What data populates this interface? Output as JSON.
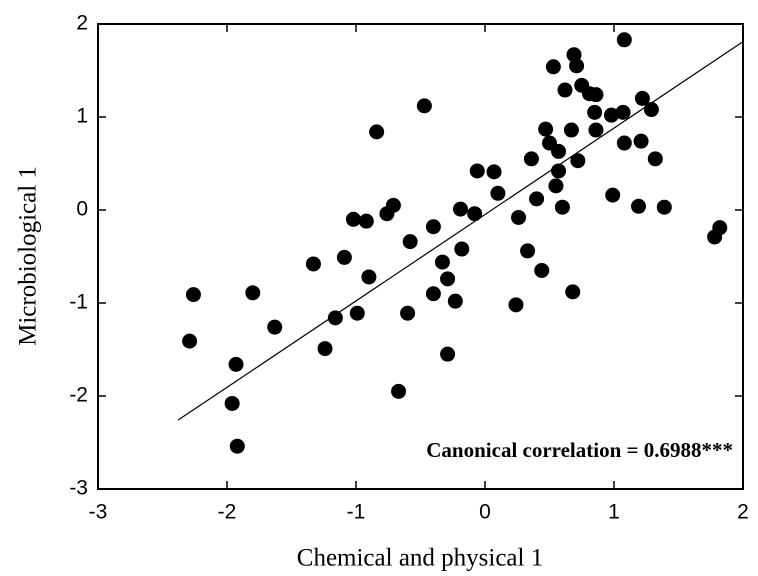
{
  "chart_data": {
    "type": "scatter",
    "xlabel": "Chemical and physical 1",
    "ylabel": "Microbiological 1",
    "annotation": "Canonical correlation = 0.6988***",
    "xlim": [
      -3,
      2
    ],
    "ylim": [
      -3,
      2
    ],
    "xticks": [
      -3,
      -2,
      -1,
      0,
      1,
      2
    ],
    "yticks": [
      -3,
      -2,
      -1,
      0,
      1,
      2
    ],
    "color": "#000000",
    "x": [
      -2.26,
      -2.29,
      -1.93,
      -1.96,
      -1.92,
      -1.8,
      -1.63,
      -1.33,
      -1.24,
      -1.16,
      -1.09,
      -1.02,
      -0.99,
      -0.92,
      -0.9,
      -0.84,
      -0.76,
      -0.71,
      -0.67,
      -0.6,
      -0.58,
      -0.47,
      -0.4,
      -0.4,
      -0.33,
      -0.29,
      -0.29,
      -0.23,
      -0.19,
      -0.18,
      -0.08,
      -0.06,
      0.07,
      0.1,
      0.24,
      0.26,
      0.33,
      0.36,
      0.4,
      0.44,
      0.47,
      0.5,
      0.53,
      0.55,
      0.57,
      0.57,
      0.6,
      0.62,
      0.67,
      0.68,
      0.69,
      0.71,
      0.72,
      0.75,
      0.81,
      0.86,
      0.85,
      0.86,
      0.98,
      0.99,
      1.07,
      1.08,
      1.08,
      1.19,
      1.21,
      1.22,
      1.29,
      1.32,
      1.39,
      1.78,
      1.82
    ],
    "y": [
      -0.91,
      -1.41,
      -1.66,
      -2.08,
      -2.54,
      -0.89,
      -1.26,
      -0.58,
      -1.49,
      -1.16,
      -0.51,
      -0.1,
      -1.11,
      -0.12,
      -0.72,
      0.84,
      -0.04,
      0.05,
      -1.95,
      -1.11,
      -0.34,
      1.12,
      -0.18,
      -0.9,
      -0.56,
      -0.74,
      -1.55,
      -0.98,
      0.01,
      -0.42,
      -0.04,
      0.42,
      0.41,
      0.18,
      -1.02,
      -0.08,
      -0.44,
      0.55,
      0.12,
      -0.65,
      0.87,
      0.72,
      1.54,
      0.26,
      0.63,
      0.42,
      0.03,
      1.29,
      0.86,
      -0.88,
      1.67,
      1.55,
      0.53,
      1.34,
      1.25,
      1.24,
      1.05,
      0.86,
      1.02,
      0.16,
      1.05,
      1.83,
      0.72,
      0.04,
      0.74,
      1.2,
      1.08,
      0.55,
      0.03,
      -0.29,
      -0.19
    ],
    "fit": {
      "x": [
        -2.38,
        2
      ],
      "y": [
        -2.26,
        1.81
      ]
    }
  }
}
